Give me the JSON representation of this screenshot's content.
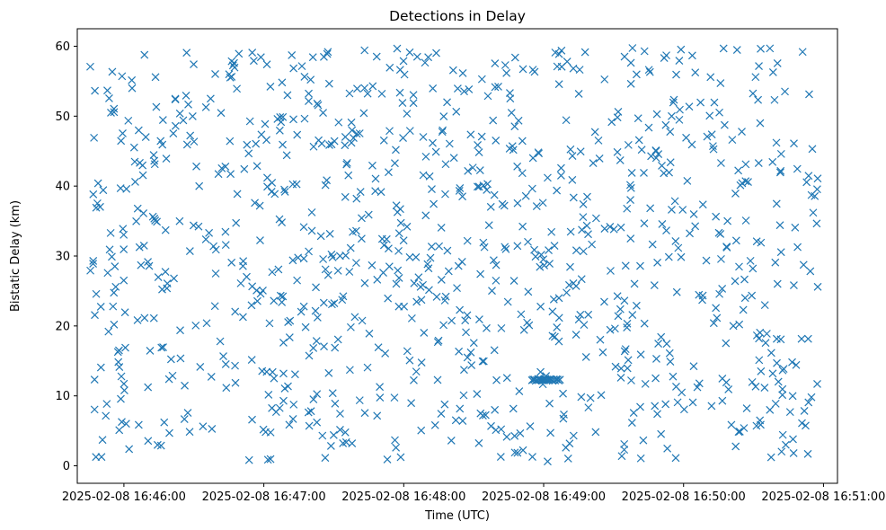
{
  "chart_data": {
    "type": "scatter",
    "title": "Detections in Delay",
    "xlabel": "Time (UTC)",
    "ylabel": "Bistatic Delay (km)",
    "marker": "x",
    "color": "#1f77b4",
    "x_ticks": [
      "2025-02-08 16:46:00",
      "2025-02-08 16:47:00",
      "2025-02-08 16:48:00",
      "2025-02-08 16:49:00",
      "2025-02-08 16:50:00",
      "2025-02-08 16:51:00"
    ],
    "y_ticks": [
      0,
      10,
      20,
      30,
      40,
      50,
      60
    ],
    "xlim": [
      "2025-02-08 16:45:40",
      "2025-02-08 16:51:06"
    ],
    "ylim": [
      -2.5,
      62.5
    ],
    "grid": false,
    "legend": "none",
    "x_start": "2025-02-08 16:45:45",
    "x_end": "2025-02-08 16:50:58",
    "y_min": 0.5,
    "y_max": 59.8,
    "num_points": 1000,
    "cluster": {
      "y": 12.3,
      "x_start": "2025-02-08 16:48:55",
      "x_end": "2025-02-08 16:49:07",
      "count": 24
    }
  }
}
